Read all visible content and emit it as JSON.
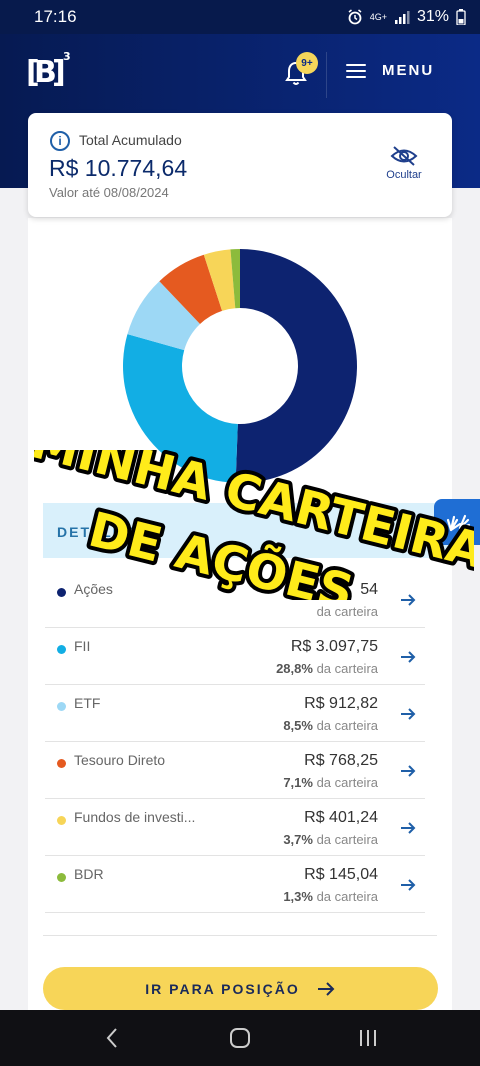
{
  "status_bar": {
    "time": "17:16",
    "network": "4G+",
    "battery": "31%"
  },
  "header": {
    "logo_text": "B",
    "logo_superscript": "3",
    "notification_badge": "9+",
    "menu_label": "MENU"
  },
  "summary": {
    "label": "Total Acumulado",
    "value": "R$ 10.774,64",
    "date": "Valor até 08/08/2024",
    "hide_label": "Ocultar"
  },
  "chart_data": {
    "type": "pie",
    "categories": [
      "Ações",
      "FII",
      "ETF",
      "Tesouro Direto",
      "Fundos de investimento",
      "BDR"
    ],
    "values": [
      50.6,
      28.8,
      8.5,
      7.1,
      3.7,
      1.3
    ],
    "colors": [
      "#0d2370",
      "#12aee4",
      "#9dd8f5",
      "#e55a20",
      "#f7d558",
      "#8cbb3c"
    ]
  },
  "details": {
    "tab_label": "DETALHES",
    "items": [
      {
        "name": "Ações",
        "value": "54",
        "pct": "",
        "pct_suffix": "da carteira",
        "color": "#0d2370"
      },
      {
        "name": "FII",
        "value": "R$ 3.097,75",
        "pct": "28,8%",
        "pct_suffix": "da carteira",
        "color": "#12aee4"
      },
      {
        "name": "ETF",
        "value": "R$ 912,82",
        "pct": "8,5%",
        "pct_suffix": "da carteira",
        "color": "#9dd8f5"
      },
      {
        "name": "Tesouro Direto",
        "value": "R$ 768,25",
        "pct": "7,1%",
        "pct_suffix": "da carteira",
        "color": "#e55a20"
      },
      {
        "name": "Fundos de investi...",
        "value": "R$ 401,24",
        "pct": "3,7%",
        "pct_suffix": "da carteira",
        "color": "#f7d558"
      },
      {
        "name": "BDR",
        "value": "R$ 145,04",
        "pct": "1,3%",
        "pct_suffix": "da carteira",
        "color": "#8cbb3c"
      }
    ]
  },
  "button": {
    "label": "IR PARA POSIÇÃO"
  },
  "overlay": {
    "line1": "MINHA CARTEIRA",
    "line2": "DE AÇÕES"
  },
  "icons": {
    "info": "info-icon",
    "bell": "bell-icon",
    "hide": "eye-off-icon",
    "arrow": "arrow-right-icon",
    "accessibility": "hand-sign-icon"
  }
}
